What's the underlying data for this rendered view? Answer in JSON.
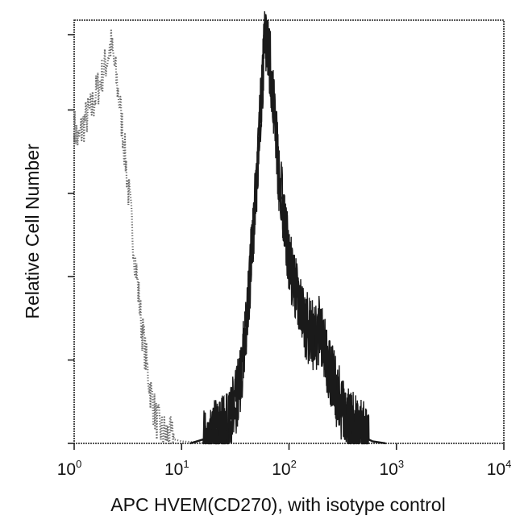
{
  "chart_data": {
    "type": "line",
    "title": "",
    "xlabel": "APC HVEM(CD270), with isotype control",
    "ylabel": "Relative Cell Number",
    "x_scale": "log",
    "xlim": [
      1,
      10000
    ],
    "ylim": [
      0,
      100
    ],
    "y_tick_values": [
      0,
      20,
      40,
      60,
      80,
      100
    ],
    "x_ticks": [
      {
        "base": "10",
        "exp": "0",
        "value": 1
      },
      {
        "base": "10",
        "exp": "1",
        "value": 10
      },
      {
        "base": "10",
        "exp": "2",
        "value": 100
      },
      {
        "base": "10",
        "exp": "3",
        "value": 1000
      },
      {
        "base": "10",
        "exp": "4",
        "value": 10000
      }
    ],
    "grid": false,
    "legend": "none",
    "series": [
      {
        "role": "isotype-control",
        "style": "dotted",
        "color": "#6a6a6a",
        "points": [
          [
            1.0,
            78
          ],
          [
            1.1,
            74
          ],
          [
            1.2,
            78
          ],
          [
            1.3,
            80
          ],
          [
            1.45,
            82
          ],
          [
            1.6,
            86
          ],
          [
            1.8,
            90
          ],
          [
            2.0,
            94
          ],
          [
            2.2,
            98
          ],
          [
            2.4,
            92
          ],
          [
            2.7,
            82
          ],
          [
            3.0,
            70
          ],
          [
            3.4,
            55
          ],
          [
            3.8,
            42
          ],
          [
            4.2,
            30
          ],
          [
            4.7,
            20
          ],
          [
            5.2,
            12
          ],
          [
            5.8,
            6
          ],
          [
            6.5,
            3
          ],
          [
            7.5,
            2
          ],
          [
            8.5,
            1
          ],
          [
            10,
            0.5
          ],
          [
            15,
            0.2
          ],
          [
            25,
            0
          ]
        ]
      },
      {
        "role": "hvem-stained",
        "style": "solid-jagged",
        "color": "#1a1a1a",
        "points": [
          [
            12,
            0
          ],
          [
            16,
            1
          ],
          [
            20,
            2
          ],
          [
            25,
            4
          ],
          [
            30,
            8
          ],
          [
            35,
            15
          ],
          [
            40,
            28
          ],
          [
            45,
            48
          ],
          [
            50,
            65
          ],
          [
            55,
            85
          ],
          [
            60,
            100
          ],
          [
            65,
            96
          ],
          [
            70,
            88
          ],
          [
            75,
            78
          ],
          [
            80,
            66
          ],
          [
            90,
            56
          ],
          [
            100,
            45
          ],
          [
            115,
            38
          ],
          [
            130,
            33
          ],
          [
            150,
            28
          ],
          [
            170,
            26
          ],
          [
            190,
            28
          ],
          [
            210,
            24
          ],
          [
            240,
            18
          ],
          [
            270,
            13
          ],
          [
            310,
            9
          ],
          [
            360,
            6
          ],
          [
            420,
            3
          ],
          [
            500,
            1.5
          ],
          [
            600,
            0.5
          ],
          [
            800,
            0
          ]
        ]
      }
    ]
  }
}
